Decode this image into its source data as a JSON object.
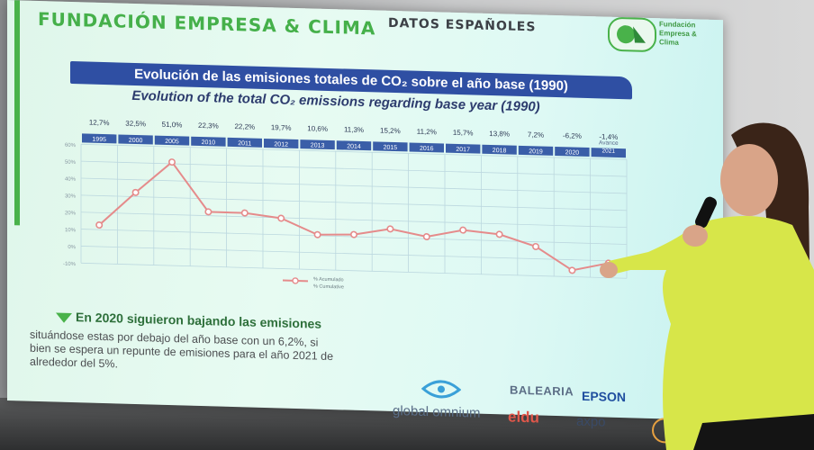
{
  "header": {
    "title": "FUNDACIÓN EMPRESA & CLIMA",
    "subtitle": "DATOS ESPAÑOLES",
    "logo_lines": [
      "Fundación",
      "Empresa &",
      "Clima"
    ]
  },
  "banner": {
    "title": "Evolución de las emisiones totales de CO₂ sobre el año base (1990)",
    "subtitle": "Evolution of the total CO₂ emissions regarding base year (1990)"
  },
  "chart_data": {
    "type": "line",
    "categories": [
      "1995",
      "2000",
      "2005",
      "2010",
      "2011",
      "2012",
      "2013",
      "2014",
      "2015",
      "2016",
      "2017",
      "2018",
      "2019",
      "2020",
      "Avance 2021"
    ],
    "value_labels": [
      "12,7%",
      "32,5%",
      "51,0%",
      "22,3%",
      "22,2%",
      "19,7%",
      "10,6%",
      "11,3%",
      "15,2%",
      "11,2%",
      "15,7%",
      "13,8%",
      "7,2%",
      "-6,2%",
      "-1,4%"
    ],
    "series": [
      {
        "name": "% Acumulado",
        "values": [
          12.7,
          32.5,
          51.0,
          22.3,
          22.2,
          19.7,
          10.6,
          11.3,
          15.2,
          11.2,
          15.7,
          13.8,
          7.2,
          -6.2,
          -1.4
        ]
      }
    ],
    "y_ticks": [
      "60%",
      "50%",
      "40%",
      "30%",
      "20%",
      "10%",
      "0%",
      "-10%"
    ],
    "ylim": [
      -10,
      60
    ],
    "legend_lines": [
      "% Acumulado",
      "% Cumulative"
    ],
    "legend_position": "bottom-center",
    "grid": true,
    "line_color": "#e58b8b",
    "category_bar_color": "#3a5ea8"
  },
  "section": {
    "heading": "En 2020 siguieron bajando las emisiones",
    "paragraph": "situándose estas por debajo del año base con un 6,2%, si bien se espera un repunte de emisiones para el año 2021 de alrededor del 5%."
  },
  "sponsors": {
    "global_omnium": "global omnium",
    "balearia": "BALEARIA",
    "epson": "EPSON",
    "eldu": "eldu",
    "axpo": "axpo"
  },
  "colors": {
    "brand_green": "#45b04a",
    "banner_blue": "#2f4fa3",
    "jacket_yellow": "#d8e84a"
  }
}
